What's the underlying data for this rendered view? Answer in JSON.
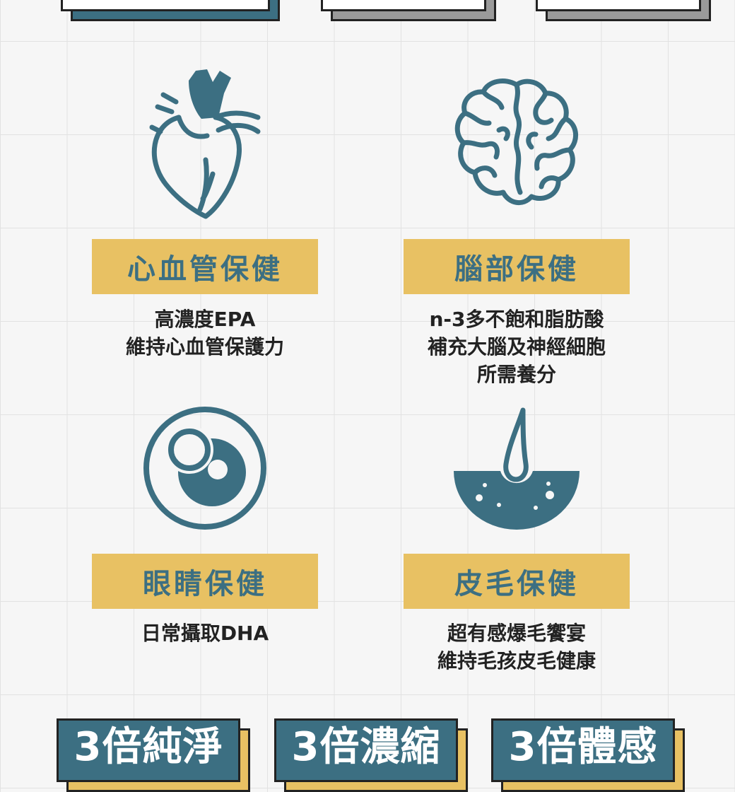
{
  "colors": {
    "accent": "#3c6f82",
    "highlight": "#e8c163",
    "text": "#222222",
    "background": "#f6f6f6"
  },
  "top_badges": [
    {
      "label": "",
      "shadow_color": "#3c6f82"
    },
    {
      "label": "",
      "shadow_color": "#9a9a9a"
    },
    {
      "label": "",
      "shadow_color": "#9a9a9a"
    }
  ],
  "features": [
    {
      "icon": "heart-icon",
      "title": "心血管保健",
      "desc": [
        "高濃度EPA",
        "維持心血管保護力"
      ]
    },
    {
      "icon": "brain-icon",
      "title": "腦部保健",
      "desc": [
        "n-3多不飽和脂肪酸",
        "補充大腦及神經細胞",
        "所需養分"
      ]
    },
    {
      "icon": "eye-icon",
      "title": "眼睛保健",
      "desc": [
        "日常攝取DHA"
      ]
    },
    {
      "icon": "hair-icon",
      "title": "皮毛保健",
      "desc": [
        "超有感爆毛饗宴",
        "維持毛孩皮毛健康"
      ]
    }
  ],
  "bottom_badges": [
    {
      "label": "3倍純淨"
    },
    {
      "label": "3倍濃縮"
    },
    {
      "label": "3倍體感"
    }
  ]
}
